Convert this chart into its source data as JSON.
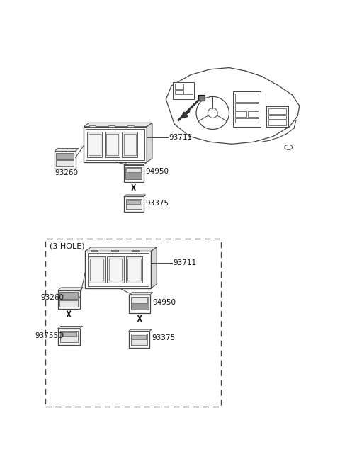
{
  "bg_color": "#ffffff",
  "line_color": "#444444",
  "dark_color": "#111111",
  "gray_fill": "#cccccc",
  "light_fill": "#e8e8e8",
  "part_labels": {
    "93711": "93711",
    "93260": "93260",
    "94950": "94950",
    "93375": "93375",
    "93755D": "93755D"
  },
  "hole3_label": "(3 HOLE)",
  "font_size": 7.5
}
